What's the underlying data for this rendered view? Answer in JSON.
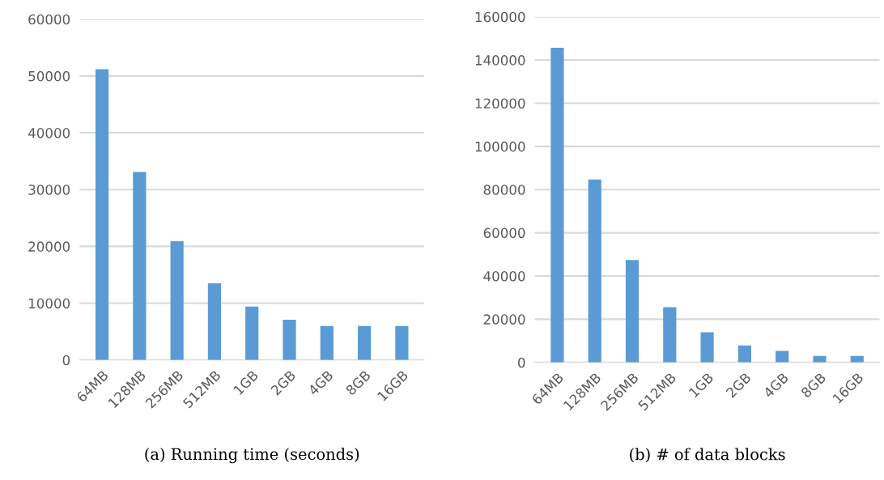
{
  "chart_data": [
    {
      "type": "bar",
      "categories": [
        "64MB",
        "128MB",
        "256MB",
        "512MB",
        "1GB",
        "2GB",
        "4GB",
        "8GB",
        "16GB"
      ],
      "values": [
        51200,
        33100,
        20900,
        13500,
        9400,
        7100,
        6000,
        6000,
        6000
      ],
      "color": "#5b9bd5",
      "ylim": [
        0,
        60000
      ],
      "yticks": [
        0,
        10000,
        20000,
        30000,
        40000,
        50000,
        60000
      ],
      "grid": "y",
      "annotations": [
        "(a) Running time (seconds)"
      ]
    },
    {
      "type": "bar",
      "categories": [
        "64MB",
        "128MB",
        "256MB",
        "512MB",
        "1GB",
        "2GB",
        "4GB",
        "8GB",
        "16GB"
      ],
      "values": [
        145700,
        84700,
        47400,
        25600,
        13900,
        7900,
        5300,
        3000,
        3000
      ],
      "color": "#5b9bd5",
      "ylim": [
        0,
        160000
      ],
      "yticks": [
        0,
        20000,
        40000,
        60000,
        80000,
        100000,
        120000,
        140000,
        160000
      ],
      "grid": "y",
      "annotations": [
        "(b) # of data blocks"
      ]
    }
  ]
}
